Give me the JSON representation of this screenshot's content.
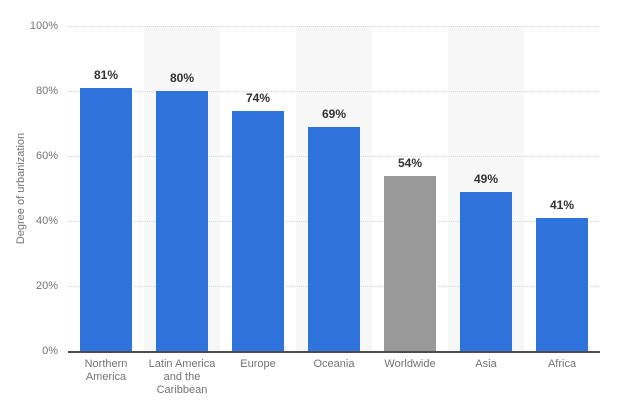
{
  "colors": {
    "background": "#ffffff",
    "bar_default": "#2e74dc",
    "bar_highlight": "#999999",
    "plot_band": "#f7f7f7",
    "gridline": "#d4d4d4",
    "axis_line": "#4d4d4d",
    "tick_label": "#737373",
    "value_label": "#333333"
  },
  "chart_data": {
    "type": "bar",
    "title": "",
    "xlabel": "",
    "ylabel": "Degree of urbanization",
    "ylim": [
      0,
      100
    ],
    "yticks": [
      0,
      20,
      40,
      60,
      80,
      100
    ],
    "ytick_labels": [
      "0%",
      "20%",
      "40%",
      "60%",
      "80%",
      "100%"
    ],
    "grid": "horizontal-dotted",
    "legend": "none",
    "alternating_plot_bands": true,
    "categories": [
      "Northern America",
      "Latin America and the Caribbean",
      "Europe",
      "Oceania",
      "Worldwide",
      "Asia",
      "Africa"
    ],
    "category_label_lines": [
      [
        "Northern",
        "America"
      ],
      [
        "Latin America",
        "and the",
        "Caribbean"
      ],
      [
        "Europe"
      ],
      [
        "Oceania"
      ],
      [
        "Worldwide"
      ],
      [
        "Asia"
      ],
      [
        "Africa"
      ]
    ],
    "values": [
      81,
      80,
      74,
      69,
      54,
      49,
      41
    ],
    "value_labels": [
      "81%",
      "80%",
      "74%",
      "69%",
      "54%",
      "49%",
      "41%"
    ],
    "bar_colors": [
      "#2e74dc",
      "#2e74dc",
      "#2e74dc",
      "#2e74dc",
      "#999999",
      "#2e74dc",
      "#2e74dc"
    ]
  }
}
